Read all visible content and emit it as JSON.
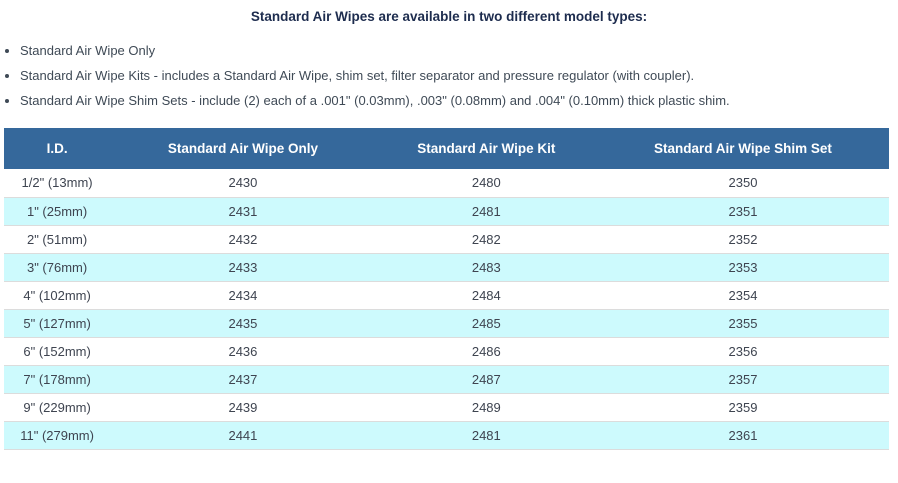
{
  "page": {
    "title": "Standard Air Wipes are available in two different model types:",
    "bullets": [
      "Standard Air Wipe Only",
      "Standard Air Wipe Kits - includes a Standard Air Wipe, shim set, filter separator and pressure regulator (with coupler).",
      "Standard Air Wipe Shim Sets - include (2) each of a .001\" (0.03mm), .003\" (0.08mm) and .004\" (0.10mm) thick plastic shim."
    ]
  },
  "table": {
    "columns": [
      "I.D.",
      "Standard Air Wipe Only",
      "Standard Air Wipe Kit",
      "Standard Air Wipe Shim Set"
    ],
    "rows": [
      {
        "id": "1/2\" (13mm)",
        "only": "2430",
        "kit": "2480",
        "shim_set": "2350"
      },
      {
        "id": "1\" (25mm)",
        "only": "2431",
        "kit": "2481",
        "shim_set": "2351"
      },
      {
        "id": "2\" (51mm)",
        "only": "2432",
        "kit": "2482",
        "shim_set": "2352"
      },
      {
        "id": "3\" (76mm)",
        "only": "2433",
        "kit": "2483",
        "shim_set": "2353"
      },
      {
        "id": "4\" (102mm)",
        "only": "2434",
        "kit": "2484",
        "shim_set": "2354"
      },
      {
        "id": "5\" (127mm)",
        "only": "2435",
        "kit": "2485",
        "shim_set": "2355"
      },
      {
        "id": "6\" (152mm)",
        "only": "2436",
        "kit": "2486",
        "shim_set": "2356"
      },
      {
        "id": "7\" (178mm)",
        "only": "2437",
        "kit": "2487",
        "shim_set": "2357"
      },
      {
        "id": "9\" (229mm)",
        "only": "2439",
        "kit": "2489",
        "shim_set": "2359"
      },
      {
        "id": "11\" (279mm)",
        "only": "2441",
        "kit": "2481",
        "shim_set": "2361"
      }
    ]
  },
  "colors": {
    "header_bg": "#35689b",
    "header_text": "#ffffff",
    "stripe_bg": "#cdfafd",
    "row_bg": "#ffffff",
    "row_border": "#dcdcdc",
    "title_text": "#1d2c4e",
    "body_text": "#3f4a56"
  }
}
